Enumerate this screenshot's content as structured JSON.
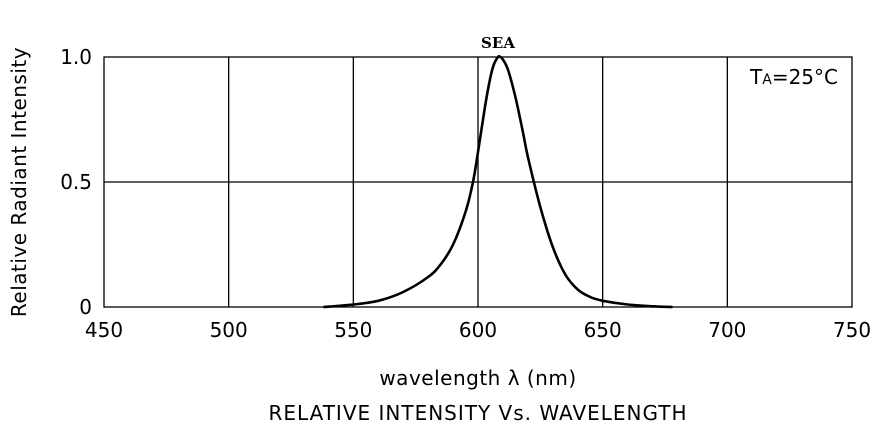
{
  "chart_data": {
    "type": "line",
    "title": "RELATIVE INTENSITY Vs. WAVELENGTH",
    "xlabel": "wavelength λ (nm)",
    "ylabel": "Relative Radiant Intensity",
    "xlim": [
      450,
      750
    ],
    "ylim": [
      0,
      1.0
    ],
    "x_ticks": [
      "450",
      "500",
      "550",
      "600",
      "650",
      "700",
      "750"
    ],
    "x_tick_values": [
      450,
      500,
      550,
      600,
      650,
      700,
      750
    ],
    "y_ticks": [
      "0",
      "0.5",
      "1.0"
    ],
    "y_tick_values": [
      0,
      0.5,
      1.0
    ],
    "grid": true,
    "annotation": {
      "condition_prefix": "T",
      "condition_sub": "A",
      "condition_rest": "=25°C",
      "placement": "top-right"
    },
    "series": [
      {
        "name": "SEA",
        "x": [
          538,
          550,
          560,
          570,
          580,
          585,
          590,
          595,
          598,
          600,
          602,
          604,
          606,
          608,
          609,
          610,
          612,
          615,
          618,
          620,
          625,
          630,
          635,
          640,
          645,
          650,
          660,
          670,
          678
        ],
        "y": [
          0.0,
          0.01,
          0.025,
          0.06,
          0.12,
          0.17,
          0.25,
          0.38,
          0.5,
          0.62,
          0.75,
          0.87,
          0.96,
          1.0,
          1.0,
          0.99,
          0.95,
          0.84,
          0.7,
          0.6,
          0.4,
          0.24,
          0.13,
          0.07,
          0.04,
          0.025,
          0.01,
          0.003,
          0.0
        ]
      }
    ]
  }
}
